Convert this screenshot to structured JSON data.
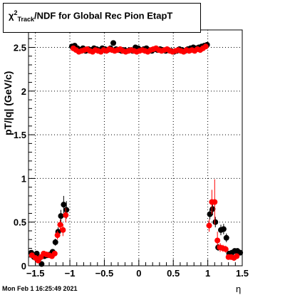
{
  "title": {
    "chi_symbol": "χ",
    "superscript": "2",
    "subscript": "Track",
    "text": "/NDF for Global Rec Pion EtapT"
  },
  "timestamp": "Mon Feb  1 16:25:49 2021",
  "chart_data": {
    "type": "scatter",
    "title": "χ²_Track/NDF for Global Rec Pion EtapT",
    "xlabel": "η",
    "ylabel": "pT/|q| (GeV/c)",
    "xlim": [
      -1.6,
      1.5
    ],
    "ylim": [
      0,
      2.7
    ],
    "xticks": [
      -1.5,
      -1,
      -0.5,
      0,
      0.5,
      1,
      1.5
    ],
    "xtick_labels": [
      "−1.5",
      "−1",
      "−0.5",
      "0",
      "0.5",
      "1",
      "1.5"
    ],
    "yticks": [
      0,
      0.5,
      1,
      1.5,
      2,
      2.5
    ],
    "ytick_labels": [
      "0",
      "0.5",
      "1",
      "1.5",
      "2",
      "2.5"
    ],
    "grid": true,
    "series": [
      {
        "color": "#000000",
        "points": [
          {
            "x": -1.56,
            "y": 0.15,
            "err": 0.03
          },
          {
            "x": -1.52,
            "y": 0.1,
            "err": 0.03
          },
          {
            "x": -1.48,
            "y": 0.14,
            "err": 0.03
          },
          {
            "x": -1.45,
            "y": 0.08,
            "err": 0.03
          },
          {
            "x": -1.41,
            "y": 0.02,
            "err": 0.03
          },
          {
            "x": -1.37,
            "y": 0.11,
            "err": 0.03
          },
          {
            "x": -1.33,
            "y": 0.12,
            "err": 0.03
          },
          {
            "x": -1.29,
            "y": 0.13,
            "err": 0.03
          },
          {
            "x": -1.25,
            "y": 0.16,
            "err": 0.03
          },
          {
            "x": -1.21,
            "y": 0.27,
            "err": 0.04
          },
          {
            "x": -1.17,
            "y": 0.39,
            "err": 0.05
          },
          {
            "x": -1.13,
            "y": 0.57,
            "err": 0.07
          },
          {
            "x": -1.09,
            "y": 0.7,
            "err": 0.1
          },
          {
            "x": -1.05,
            "y": 0.64,
            "err": 0.1
          },
          {
            "x": -0.97,
            "y": 2.51,
            "err": 0.02
          },
          {
            "x": -0.93,
            "y": 2.52,
            "err": 0.02
          },
          {
            "x": -0.89,
            "y": 2.49,
            "err": 0.02
          },
          {
            "x": -0.85,
            "y": 2.47,
            "err": 0.02
          },
          {
            "x": -0.81,
            "y": 2.49,
            "err": 0.02
          },
          {
            "x": -0.77,
            "y": 2.46,
            "err": 0.02
          },
          {
            "x": -0.73,
            "y": 2.48,
            "err": 0.02
          },
          {
            "x": -0.69,
            "y": 2.47,
            "err": 0.02
          },
          {
            "x": -0.65,
            "y": 2.49,
            "err": 0.02
          },
          {
            "x": -0.61,
            "y": 2.48,
            "err": 0.02
          },
          {
            "x": -0.57,
            "y": 2.47,
            "err": 0.02
          },
          {
            "x": -0.53,
            "y": 2.49,
            "err": 0.02
          },
          {
            "x": -0.49,
            "y": 2.48,
            "err": 0.02
          },
          {
            "x": -0.45,
            "y": 2.47,
            "err": 0.02
          },
          {
            "x": -0.41,
            "y": 2.49,
            "err": 0.02
          },
          {
            "x": -0.37,
            "y": 2.55,
            "err": 0.02
          },
          {
            "x": -0.33,
            "y": 2.48,
            "err": 0.02
          },
          {
            "x": -0.29,
            "y": 2.47,
            "err": 0.02
          },
          {
            "x": -0.25,
            "y": 2.46,
            "err": 0.02
          },
          {
            "x": -0.21,
            "y": 2.47,
            "err": 0.02
          },
          {
            "x": -0.17,
            "y": 2.46,
            "err": 0.02
          },
          {
            "x": -0.13,
            "y": 2.47,
            "err": 0.02
          },
          {
            "x": -0.09,
            "y": 2.46,
            "err": 0.02
          },
          {
            "x": -0.05,
            "y": 2.5,
            "err": 0.02
          },
          {
            "x": -0.01,
            "y": 2.49,
            "err": 0.02
          },
          {
            "x": 0.03,
            "y": 2.47,
            "err": 0.02
          },
          {
            "x": 0.07,
            "y": 2.48,
            "err": 0.02
          },
          {
            "x": 0.11,
            "y": 2.49,
            "err": 0.02
          },
          {
            "x": 0.15,
            "y": 2.47,
            "err": 0.02
          },
          {
            "x": 0.19,
            "y": 2.46,
            "err": 0.02
          },
          {
            "x": 0.23,
            "y": 2.48,
            "err": 0.02
          },
          {
            "x": 0.27,
            "y": 2.47,
            "err": 0.02
          },
          {
            "x": 0.31,
            "y": 2.48,
            "err": 0.02
          },
          {
            "x": 0.35,
            "y": 2.47,
            "err": 0.02
          },
          {
            "x": 0.39,
            "y": 2.46,
            "err": 0.02
          },
          {
            "x": 0.43,
            "y": 2.47,
            "err": 0.02
          },
          {
            "x": 0.47,
            "y": 2.46,
            "err": 0.02
          },
          {
            "x": 0.51,
            "y": 2.45,
            "err": 0.02
          },
          {
            "x": 0.55,
            "y": 2.46,
            "err": 0.02
          },
          {
            "x": 0.59,
            "y": 2.48,
            "err": 0.02
          },
          {
            "x": 0.63,
            "y": 2.47,
            "err": 0.02
          },
          {
            "x": 0.67,
            "y": 2.46,
            "err": 0.02
          },
          {
            "x": 0.71,
            "y": 2.48,
            "err": 0.02
          },
          {
            "x": 0.75,
            "y": 2.49,
            "err": 0.02
          },
          {
            "x": 0.79,
            "y": 2.5,
            "err": 0.02
          },
          {
            "x": 0.83,
            "y": 2.49,
            "err": 0.02
          },
          {
            "x": 0.87,
            "y": 2.5,
            "err": 0.02
          },
          {
            "x": 0.91,
            "y": 2.51,
            "err": 0.02
          },
          {
            "x": 0.95,
            "y": 2.52,
            "err": 0.02
          },
          {
            "x": 0.99,
            "y": 2.53,
            "err": 0.02
          },
          {
            "x": 1.03,
            "y": 0.59,
            "err": 0.06
          },
          {
            "x": 1.07,
            "y": 0.65,
            "err": 0.07
          },
          {
            "x": 1.11,
            "y": 0.5,
            "err": 0.06
          },
          {
            "x": 1.15,
            "y": 0.21,
            "err": 0.04
          },
          {
            "x": 1.19,
            "y": 0.41,
            "err": 0.06
          },
          {
            "x": 1.23,
            "y": 0.42,
            "err": 0.06
          },
          {
            "x": 1.27,
            "y": 0.32,
            "err": 0.05
          },
          {
            "x": 1.31,
            "y": 0.14,
            "err": 0.03
          },
          {
            "x": 1.35,
            "y": 0.15,
            "err": 0.03
          },
          {
            "x": 1.39,
            "y": 0.17,
            "err": 0.03
          },
          {
            "x": 1.43,
            "y": 0.17,
            "err": 0.03
          },
          {
            "x": 1.47,
            "y": 0.15,
            "err": 0.03
          }
        ]
      },
      {
        "color": "#ff0000",
        "points": [
          {
            "x": -1.55,
            "y": 0.12,
            "err": 0.03
          },
          {
            "x": -1.5,
            "y": 0.09,
            "err": 0.03
          },
          {
            "x": -1.46,
            "y": 0.06,
            "err": 0.03
          },
          {
            "x": -1.42,
            "y": 0.1,
            "err": 0.03
          },
          {
            "x": -1.38,
            "y": 0.14,
            "err": 0.03
          },
          {
            "x": -1.34,
            "y": 0.13,
            "err": 0.03
          },
          {
            "x": -1.3,
            "y": 0.12,
            "err": 0.03
          },
          {
            "x": -1.26,
            "y": 0.11,
            "err": 0.03
          },
          {
            "x": -1.22,
            "y": 0.14,
            "err": 0.03
          },
          {
            "x": -1.18,
            "y": 0.35,
            "err": 0.05
          },
          {
            "x": -1.14,
            "y": 0.47,
            "err": 0.06
          },
          {
            "x": -1.1,
            "y": 0.41,
            "err": 0.07
          },
          {
            "x": -1.06,
            "y": 0.58,
            "err": 0.08
          },
          {
            "x": -0.95,
            "y": 2.49,
            "err": 0.02
          },
          {
            "x": -0.91,
            "y": 2.47,
            "err": 0.02
          },
          {
            "x": -0.87,
            "y": 2.45,
            "err": 0.02
          },
          {
            "x": -0.83,
            "y": 2.46,
            "err": 0.02
          },
          {
            "x": -0.79,
            "y": 2.47,
            "err": 0.02
          },
          {
            "x": -0.75,
            "y": 2.48,
            "err": 0.02
          },
          {
            "x": -0.71,
            "y": 2.46,
            "err": 0.02
          },
          {
            "x": -0.67,
            "y": 2.45,
            "err": 0.02
          },
          {
            "x": -0.63,
            "y": 2.47,
            "err": 0.02
          },
          {
            "x": -0.59,
            "y": 2.46,
            "err": 0.02
          },
          {
            "x": -0.55,
            "y": 2.45,
            "err": 0.02
          },
          {
            "x": -0.51,
            "y": 2.47,
            "err": 0.02
          },
          {
            "x": -0.47,
            "y": 2.46,
            "err": 0.02
          },
          {
            "x": -0.43,
            "y": 2.48,
            "err": 0.02
          },
          {
            "x": -0.39,
            "y": 2.47,
            "err": 0.02
          },
          {
            "x": -0.35,
            "y": 2.46,
            "err": 0.02
          },
          {
            "x": -0.31,
            "y": 2.47,
            "err": 0.02
          },
          {
            "x": -0.27,
            "y": 2.48,
            "err": 0.02
          },
          {
            "x": -0.23,
            "y": 2.46,
            "err": 0.02
          },
          {
            "x": -0.19,
            "y": 2.45,
            "err": 0.02
          },
          {
            "x": -0.15,
            "y": 2.46,
            "err": 0.02
          },
          {
            "x": -0.11,
            "y": 2.47,
            "err": 0.02
          },
          {
            "x": -0.07,
            "y": 2.46,
            "err": 0.02
          },
          {
            "x": -0.03,
            "y": 2.45,
            "err": 0.02
          },
          {
            "x": 0.01,
            "y": 2.46,
            "err": 0.02
          },
          {
            "x": 0.05,
            "y": 2.47,
            "err": 0.02
          },
          {
            "x": 0.09,
            "y": 2.46,
            "err": 0.02
          },
          {
            "x": 0.13,
            "y": 2.45,
            "err": 0.02
          },
          {
            "x": 0.17,
            "y": 2.47,
            "err": 0.02
          },
          {
            "x": 0.21,
            "y": 2.48,
            "err": 0.02
          },
          {
            "x": 0.25,
            "y": 2.49,
            "err": 0.02
          },
          {
            "x": 0.29,
            "y": 2.47,
            "err": 0.02
          },
          {
            "x": 0.33,
            "y": 2.46,
            "err": 0.02
          },
          {
            "x": 0.37,
            "y": 2.47,
            "err": 0.02
          },
          {
            "x": 0.41,
            "y": 2.48,
            "err": 0.02
          },
          {
            "x": 0.45,
            "y": 2.46,
            "err": 0.02
          },
          {
            "x": 0.49,
            "y": 2.45,
            "err": 0.02
          },
          {
            "x": 0.53,
            "y": 2.46,
            "err": 0.02
          },
          {
            "x": 0.57,
            "y": 2.47,
            "err": 0.02
          },
          {
            "x": 0.61,
            "y": 2.46,
            "err": 0.02
          },
          {
            "x": 0.65,
            "y": 2.45,
            "err": 0.02
          },
          {
            "x": 0.69,
            "y": 2.47,
            "err": 0.02
          },
          {
            "x": 0.73,
            "y": 2.46,
            "err": 0.02
          },
          {
            "x": 0.77,
            "y": 2.47,
            "err": 0.02
          },
          {
            "x": 0.81,
            "y": 2.46,
            "err": 0.02
          },
          {
            "x": 0.85,
            "y": 2.48,
            "err": 0.02
          },
          {
            "x": 0.89,
            "y": 2.47,
            "err": 0.02
          },
          {
            "x": 0.93,
            "y": 2.49,
            "err": 0.02
          },
          {
            "x": 0.97,
            "y": 2.51,
            "err": 0.02
          },
          {
            "x": 1.02,
            "y": 0.46,
            "err": 0.07
          },
          {
            "x": 1.06,
            "y": 0.73,
            "err": 0.14
          },
          {
            "x": 1.1,
            "y": 0.73,
            "err": 0.26
          },
          {
            "x": 1.14,
            "y": 0.29,
            "err": 0.1
          },
          {
            "x": 1.18,
            "y": 0.21,
            "err": 0.05
          },
          {
            "x": 1.22,
            "y": 0.2,
            "err": 0.04
          },
          {
            "x": 1.26,
            "y": 0.19,
            "err": 0.04
          },
          {
            "x": 1.3,
            "y": 0.1,
            "err": 0.03
          },
          {
            "x": 1.34,
            "y": 0.1,
            "err": 0.03
          },
          {
            "x": 1.38,
            "y": 0.09,
            "err": 0.03
          },
          {
            "x": 1.42,
            "y": 0.11,
            "err": 0.03
          }
        ]
      }
    ]
  }
}
